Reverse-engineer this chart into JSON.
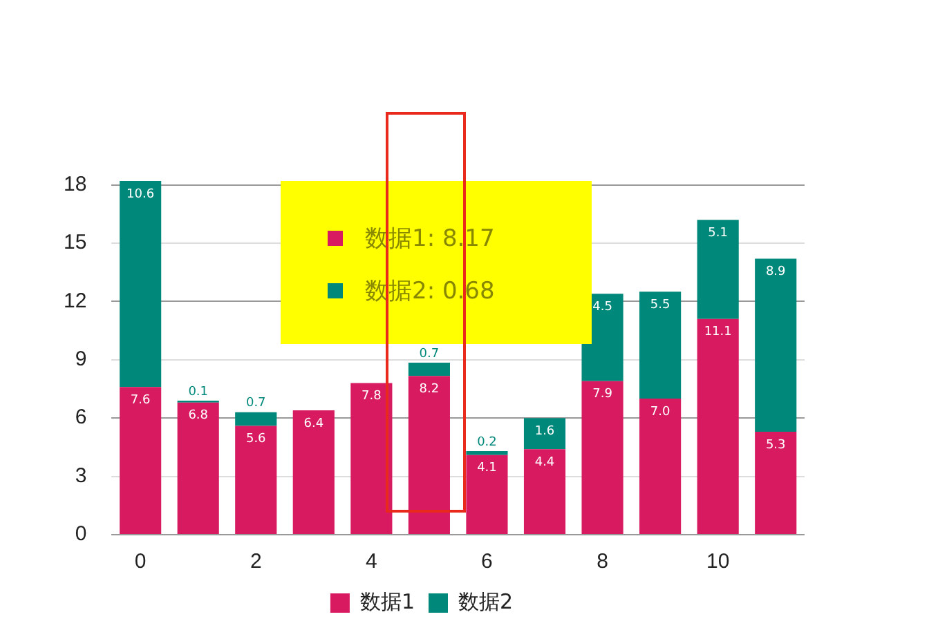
{
  "chart_data": {
    "type": "bar",
    "stacked": true,
    "categories": [
      "0",
      null,
      "2",
      null,
      "4",
      null,
      "6",
      null,
      "8",
      null,
      "10",
      null
    ],
    "series": [
      {
        "name": "数据1",
        "color": "#d81b60",
        "values": [
          7.6,
          6.8,
          5.6,
          6.4,
          7.8,
          8.17,
          4.1,
          4.4,
          7.9,
          7.0,
          11.1,
          5.3
        ],
        "value_labels": [
          "7.6",
          "6.8",
          "5.6",
          "6.4",
          "7.8",
          "8.2",
          "4.1",
          "4.4",
          "7.9",
          "7.0",
          "11.1",
          "5.3"
        ]
      },
      {
        "name": "数据2",
        "color": "#00897b",
        "values": [
          10.6,
          0.1,
          0.7,
          null,
          null,
          0.68,
          0.2,
          1.6,
          4.5,
          5.5,
          5.1,
          8.9
        ],
        "value_labels": [
          "10.6",
          "0.1",
          "0.7",
          null,
          null,
          "0.7",
          "0.2",
          "1.6",
          "4.5",
          "5.5",
          "5.1",
          "8.9"
        ]
      }
    ],
    "ylim": [
      0,
      18.2
    ],
    "yticks": [
      0,
      3,
      6,
      9,
      12,
      15,
      18
    ],
    "grid": "y",
    "legend": "bottom",
    "annotations": [
      "数据1: 8.17",
      "数据2: 0.68"
    ]
  }
}
